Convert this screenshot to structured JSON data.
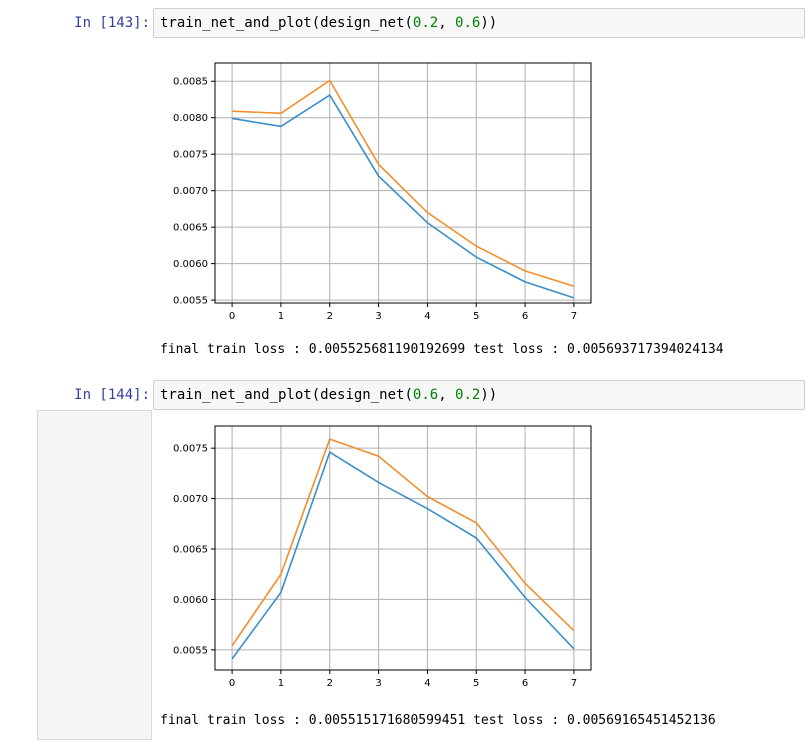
{
  "cells": [
    {
      "prompt": "In [143]:",
      "code": {
        "func": "train_net_and_plot",
        "inner": "design_net",
        "arg1": "0.2",
        "arg2": "0.6"
      },
      "output": "final train loss : 0.005525681190192699 test loss : 0.005693717394024134"
    },
    {
      "prompt": "In [144]:",
      "code": {
        "func": "train_net_and_plot",
        "inner": "design_net",
        "arg1": "0.6",
        "arg2": "0.2"
      },
      "output": "final train loss : 0.005515171680599451 test loss : 0.00569165451452136"
    }
  ],
  "colors": {
    "series_train": "#3a8fc7",
    "series_test": "#f28e2b",
    "prompt": "#303f9f",
    "number_literal": "#008000"
  },
  "chart_data": [
    {
      "type": "line",
      "x": [
        0,
        1,
        2,
        3,
        4,
        5,
        6,
        7
      ],
      "xticks": [
        "0",
        "1",
        "2",
        "3",
        "4",
        "5",
        "6",
        "7"
      ],
      "yticks": [
        "0.0055",
        "0.0060",
        "0.0065",
        "0.0070",
        "0.0075",
        "0.0080",
        "0.0085"
      ],
      "ylim": [
        0.00546,
        0.00875
      ],
      "xlim": [
        -0.35,
        7.35
      ],
      "grid": true,
      "series": [
        {
          "values": [
            0.00799,
            0.00788,
            0.00831,
            0.0072,
            0.00656,
            0.00609,
            0.00575,
            0.00553
          ]
        },
        {
          "values": [
            0.00809,
            0.00806,
            0.00851,
            0.00736,
            0.0067,
            0.00624,
            0.0059,
            0.00569
          ]
        }
      ]
    },
    {
      "type": "line",
      "x": [
        0,
        1,
        2,
        3,
        4,
        5,
        6,
        7
      ],
      "xticks": [
        "0",
        "1",
        "2",
        "3",
        "4",
        "5",
        "6",
        "7"
      ],
      "yticks": [
        "0.0055",
        "0.0060",
        "0.0065",
        "0.0070",
        "0.0075"
      ],
      "ylim": [
        0.0053,
        0.00772
      ],
      "xlim": [
        -0.35,
        7.35
      ],
      "grid": true,
      "series": [
        {
          "values": [
            0.00541,
            0.00607,
            0.00746,
            0.00716,
            0.0069,
            0.00661,
            0.00602,
            0.00551
          ]
        },
        {
          "values": [
            0.00554,
            0.00625,
            0.00759,
            0.00742,
            0.00702,
            0.00676,
            0.00616,
            0.00569
          ]
        }
      ]
    }
  ]
}
